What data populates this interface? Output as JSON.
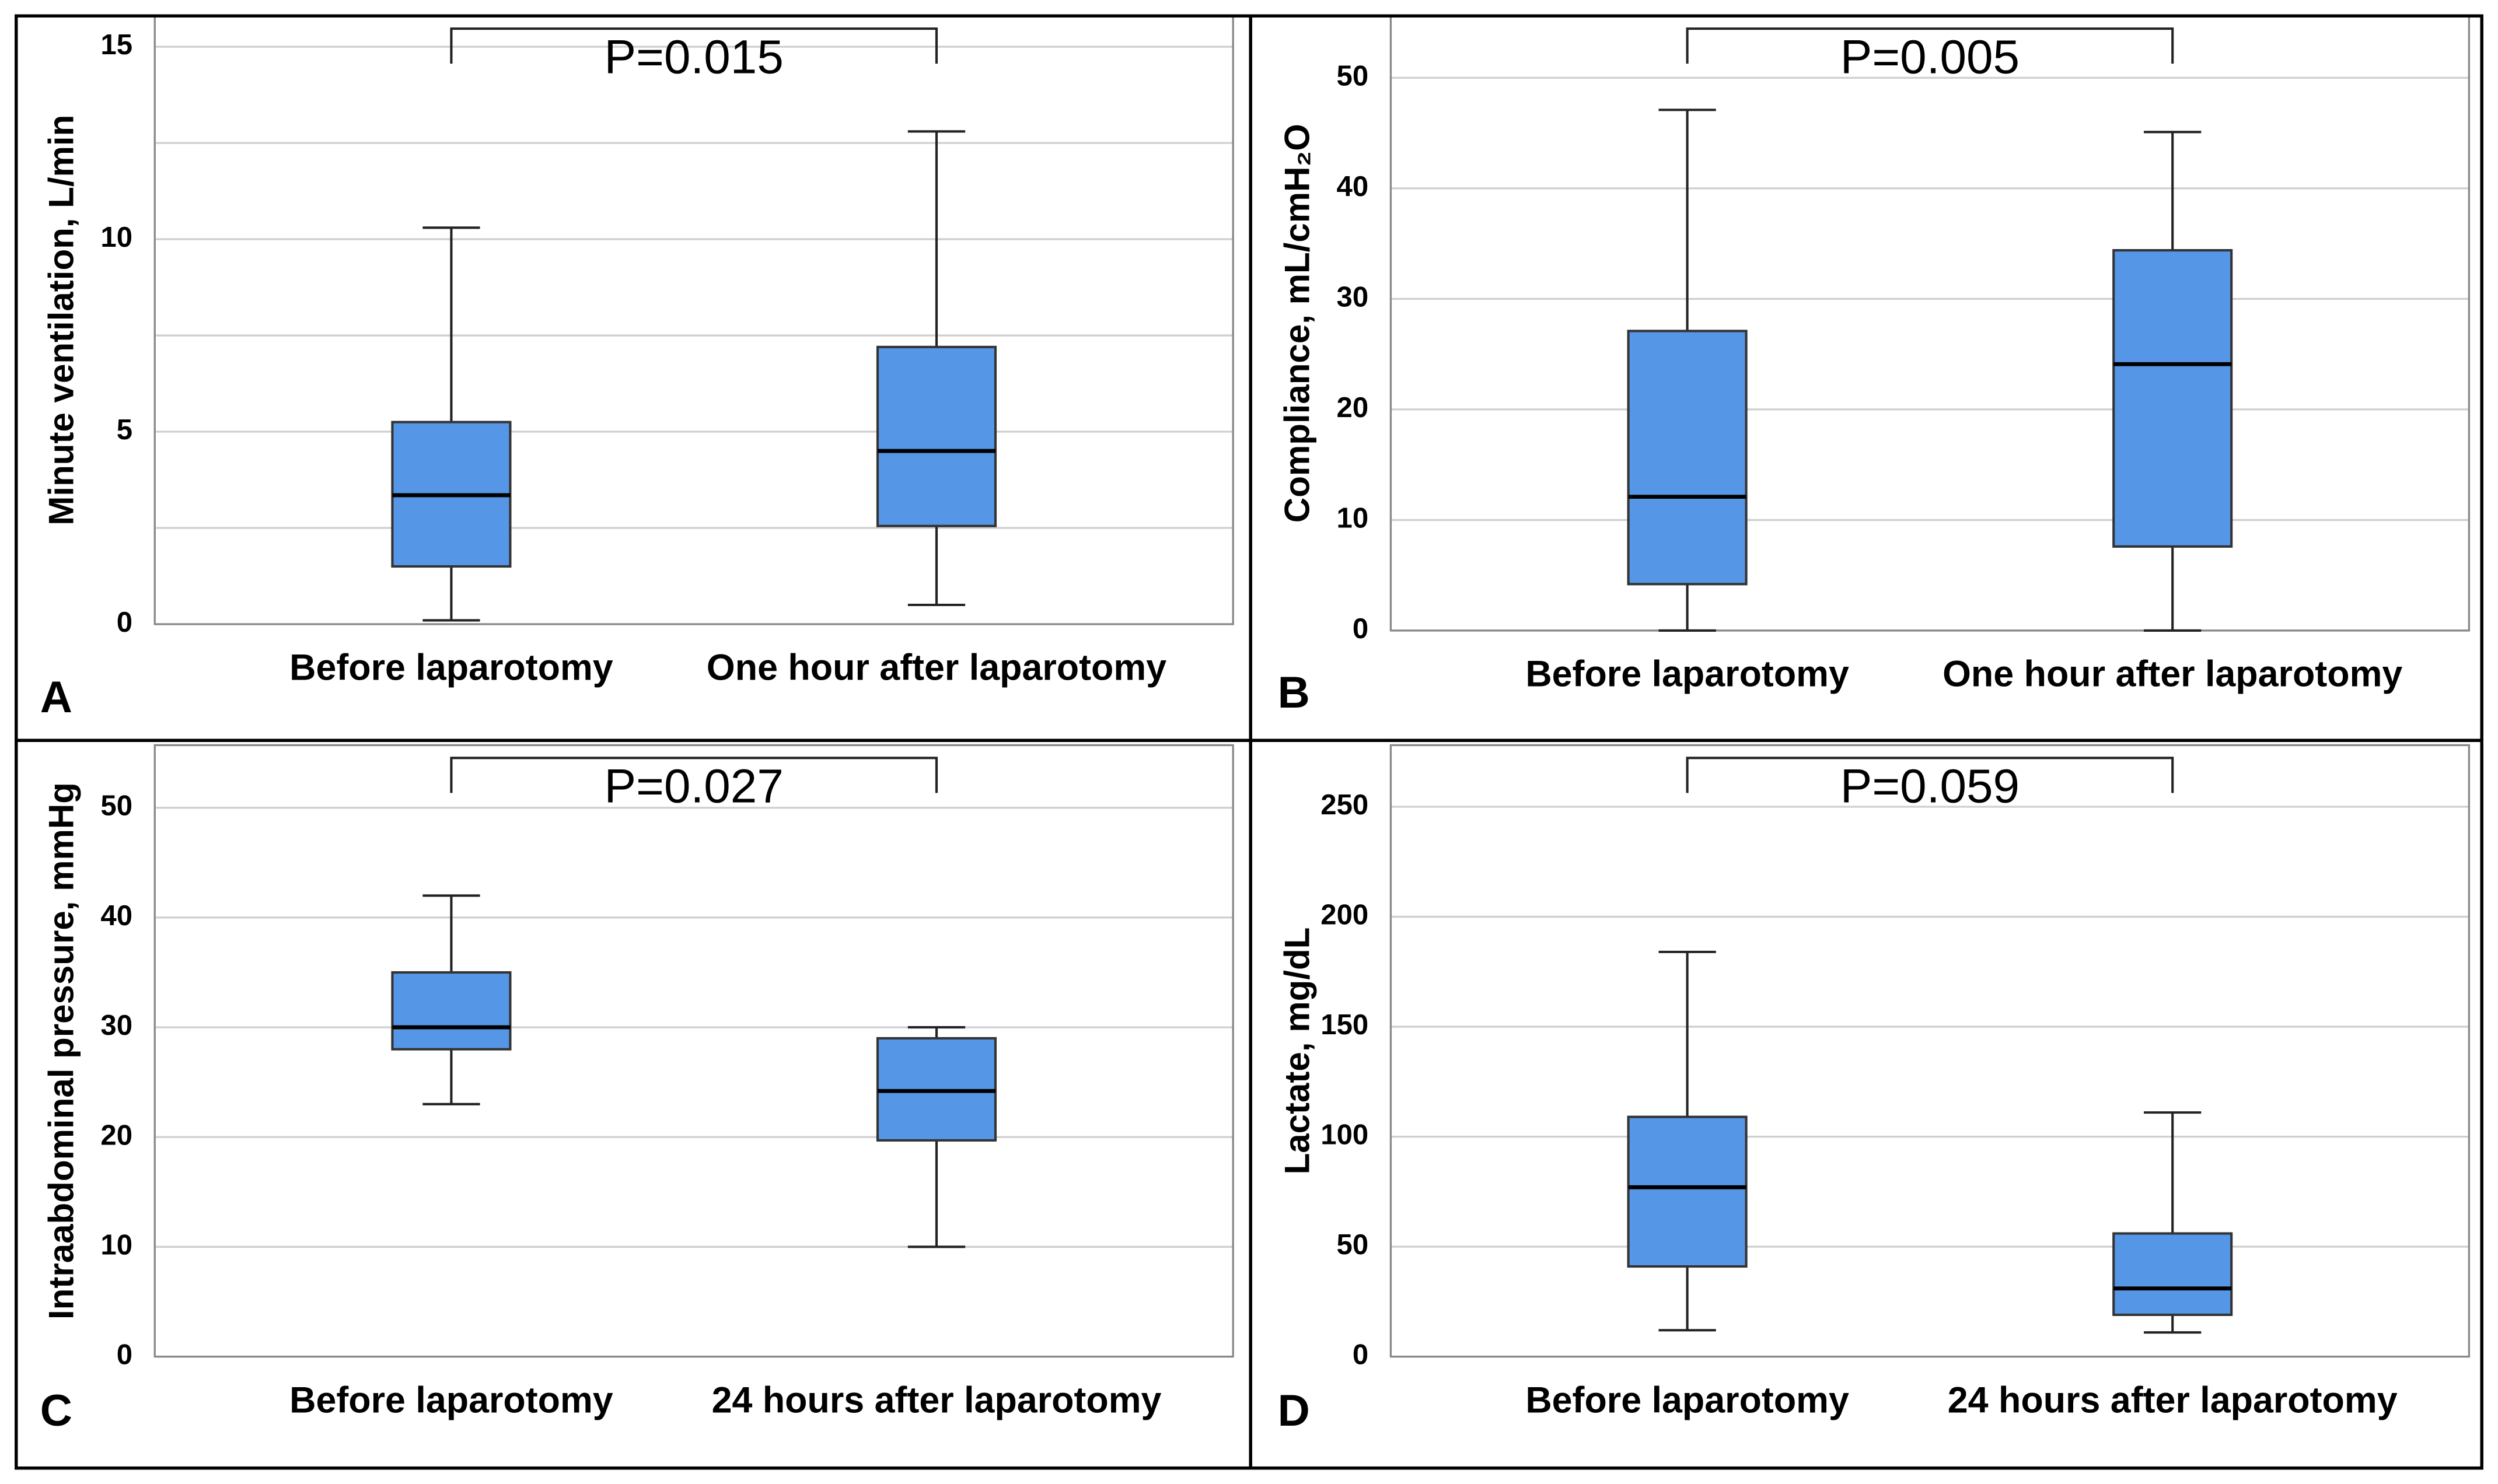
{
  "chart_data": [
    {
      "type": "box",
      "panel_label": "A",
      "y_label": "Minute ventilation, L/min",
      "annotation": "P=0.015",
      "categories": [
        "Before laparotomy",
        "One hour after laparotomy"
      ],
      "boxes": [
        {
          "min": 0.1,
          "q1": 1.5,
          "median": 3.35,
          "q3": 5.25,
          "max": 10.3
        },
        {
          "min": 0.5,
          "q1": 2.55,
          "median": 4.5,
          "q3": 7.2,
          "max": 12.8
        }
      ],
      "color": "#5596e6",
      "ylim": [
        0,
        15.8
      ],
      "yticks": [
        0,
        5,
        10,
        15
      ],
      "minor_yticks": [
        2.5,
        7.5,
        12.5
      ],
      "grid": true
    },
    {
      "type": "box",
      "panel_label": "B",
      "y_label": "Compliance, mL/cmH₂O",
      "annotation": "P=0.005",
      "categories": [
        "Before laparotomy",
        "One hour after laparotomy"
      ],
      "boxes": [
        {
          "min": 0,
          "q1": 4.2,
          "median": 12.1,
          "q3": 27.1,
          "max": 47.1
        },
        {
          "min": 0,
          "q1": 7.6,
          "median": 24.1,
          "q3": 34.4,
          "max": 45.1
        }
      ],
      "color": "#5596e6",
      "ylim": [
        0,
        55.6
      ],
      "yticks": [
        0,
        10,
        20,
        30,
        40,
        50
      ],
      "grid": true
    },
    {
      "type": "box",
      "panel_label": "C",
      "y_label": "Intraabdominal pressure, mmHg",
      "annotation": "P=0.027",
      "categories": [
        "Before laparotomy",
        "24 hours after laparotomy"
      ],
      "boxes": [
        {
          "min": 23,
          "q1": 28,
          "median": 30,
          "q3": 35,
          "max": 42
        },
        {
          "min": 10,
          "q1": 19.7,
          "median": 24.2,
          "q3": 29,
          "max": 30
        }
      ],
      "color": "#5596e6",
      "ylim": [
        0,
        55.7
      ],
      "yticks": [
        0,
        10,
        20,
        30,
        40,
        50
      ],
      "grid": true
    },
    {
      "type": "box",
      "panel_label": "D",
      "y_label": "Lactate, mg/dL",
      "annotation": "P=0.059",
      "categories": [
        "Before laparotomy",
        "24 hours after laparotomy"
      ],
      "boxes": [
        {
          "min": 12,
          "q1": 41,
          "median": 77,
          "q3": 109,
          "max": 184
        },
        {
          "min": 11,
          "q1": 19,
          "median": 31,
          "q3": 56,
          "max": 111
        }
      ],
      "color": "#5596e6",
      "ylim": [
        0,
        278
      ],
      "yticks": [
        0,
        50,
        100,
        150,
        200,
        250
      ],
      "grid": true
    }
  ]
}
